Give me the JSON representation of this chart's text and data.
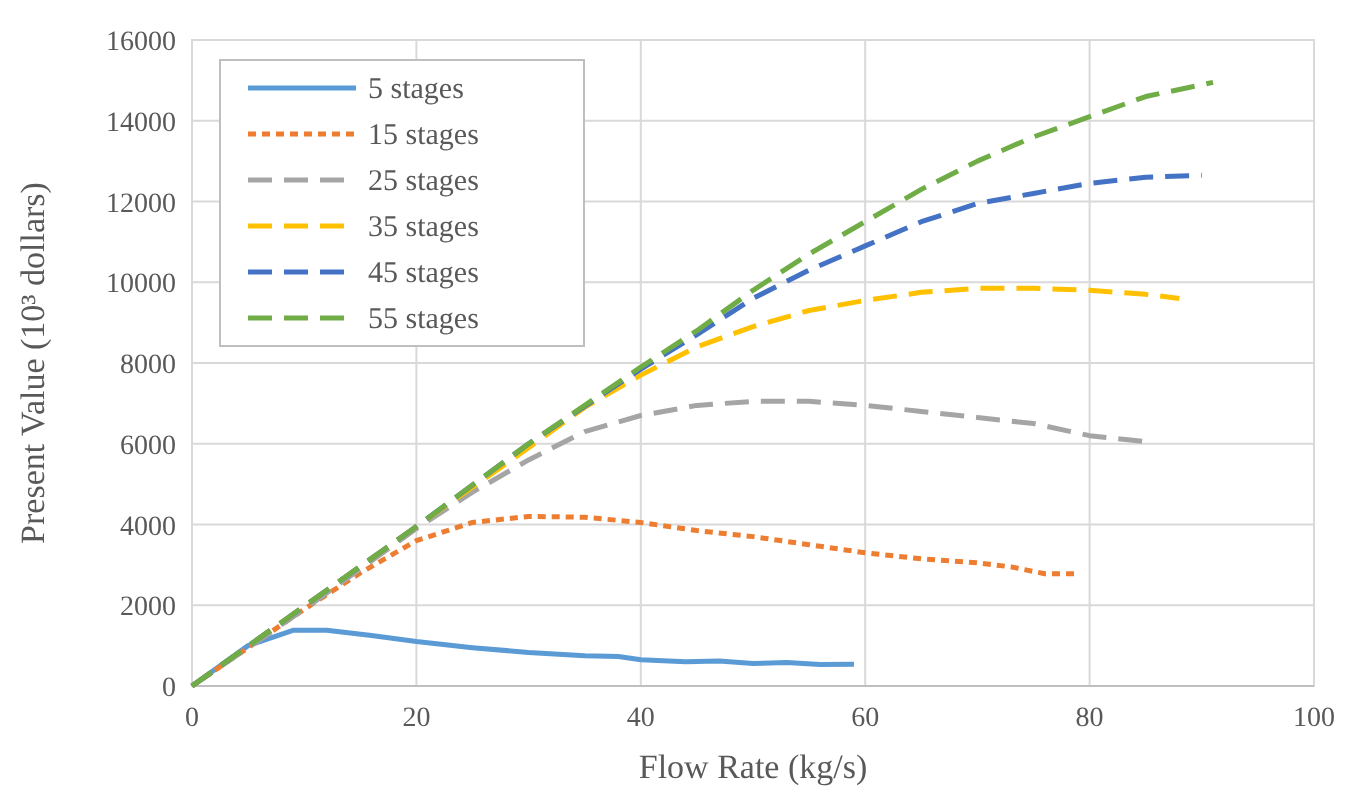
{
  "chart_data": {
    "type": "line",
    "xlabel": "Flow Rate (kg/s)",
    "ylabel": "Present Value (10³ dollars)",
    "xlim": [
      0,
      100
    ],
    "xticks": [
      0,
      20,
      40,
      60,
      80,
      100
    ],
    "ylim": [
      0,
      16000
    ],
    "yticks": [
      0,
      2000,
      4000,
      6000,
      8000,
      10000,
      12000,
      14000,
      16000
    ],
    "grid": true,
    "legend": "top left",
    "series": [
      {
        "name": "5 stages",
        "color": "#5b9bd5",
        "line_style": "solid",
        "x": [
          0,
          5,
          9,
          12,
          16,
          20,
          25,
          30,
          35,
          38,
          40,
          44,
          47,
          50,
          53,
          56,
          59
        ],
        "values": [
          0,
          1000,
          1380,
          1380,
          1250,
          1100,
          950,
          830,
          750,
          730,
          650,
          600,
          620,
          560,
          580,
          530,
          540
        ]
      },
      {
        "name": "15 stages",
        "color": "#ed7d31",
        "line_style": "dotted",
        "x": [
          0,
          10,
          15,
          20,
          25,
          30,
          35,
          40,
          45,
          50,
          55,
          60,
          65,
          70,
          73,
          76,
          79
        ],
        "values": [
          0,
          1900,
          2800,
          3600,
          4050,
          4200,
          4180,
          4050,
          3850,
          3700,
          3500,
          3300,
          3150,
          3050,
          2950,
          2780,
          2780
        ]
      },
      {
        "name": "25 stages",
        "color": "#a5a5a5",
        "line_style": "dashed",
        "x": [
          0,
          10,
          20,
          25,
          30,
          35,
          40,
          45,
          50,
          55,
          60,
          65,
          70,
          75,
          80,
          85
        ],
        "values": [
          0,
          1900,
          3900,
          4800,
          5600,
          6300,
          6700,
          6950,
          7050,
          7050,
          6950,
          6800,
          6650,
          6500,
          6200,
          6050
        ]
      },
      {
        "name": "35 stages",
        "color": "#ffc000",
        "line_style": "dashed",
        "x": [
          0,
          20,
          30,
          35,
          40,
          45,
          50,
          55,
          60,
          65,
          70,
          75,
          80,
          85,
          88
        ],
        "values": [
          0,
          3950,
          5900,
          6900,
          7700,
          8400,
          8900,
          9300,
          9550,
          9750,
          9850,
          9850,
          9800,
          9700,
          9600
        ]
      },
      {
        "name": "45 stages",
        "color": "#4472c4",
        "line_style": "dashed",
        "x": [
          0,
          20,
          30,
          40,
          45,
          50,
          55,
          60,
          65,
          70,
          75,
          80,
          85,
          90
        ],
        "values": [
          0,
          3950,
          6000,
          7850,
          8700,
          9600,
          10300,
          10900,
          11500,
          11950,
          12200,
          12450,
          12600,
          12650
        ]
      },
      {
        "name": "55 stages",
        "color": "#70ad47",
        "line_style": "dashed",
        "x": [
          0,
          20,
          30,
          40,
          45,
          50,
          55,
          60,
          65,
          70,
          75,
          80,
          85,
          91
        ],
        "values": [
          0,
          3950,
          6000,
          7900,
          8800,
          9800,
          10700,
          11500,
          12300,
          13000,
          13600,
          14100,
          14600,
          14950
        ]
      }
    ]
  }
}
